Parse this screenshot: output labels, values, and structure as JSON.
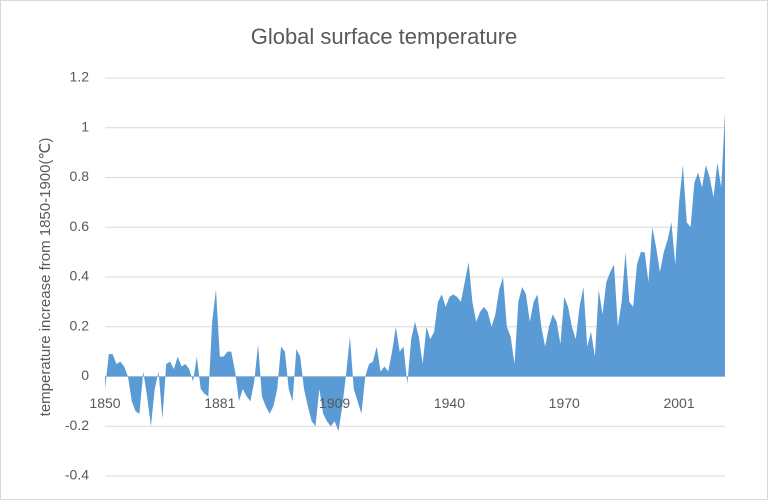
{
  "chart_data": {
    "type": "area",
    "title": "Global surface temperature",
    "y_label": "temperature increase from 1850-1900(℃)",
    "color": "#5b9bd5",
    "grid": true,
    "ylim": [
      -0.4,
      1.2
    ],
    "yticks": [
      -0.4,
      -0.2,
      0,
      0.2,
      0.4,
      0.6,
      0.8,
      1,
      1.2
    ],
    "categories": [
      "1850",
      null,
      null,
      null,
      null,
      null,
      null,
      null,
      null,
      null,
      null,
      null,
      null,
      null,
      null,
      null,
      null,
      null,
      null,
      null,
      null,
      null,
      null,
      null,
      null,
      null,
      null,
      null,
      null,
      null,
      "1881",
      null,
      null,
      null,
      null,
      null,
      null,
      null,
      null,
      null,
      null,
      null,
      null,
      null,
      null,
      null,
      null,
      null,
      null,
      null,
      null,
      null,
      null,
      null,
      null,
      null,
      null,
      null,
      null,
      null,
      "1909",
      null,
      null,
      null,
      null,
      null,
      null,
      null,
      null,
      null,
      null,
      null,
      null,
      null,
      null,
      null,
      null,
      null,
      null,
      null,
      null,
      null,
      null,
      null,
      null,
      null,
      null,
      null,
      null,
      null,
      "1940",
      null,
      null,
      null,
      null,
      null,
      null,
      null,
      null,
      null,
      null,
      null,
      null,
      null,
      null,
      null,
      null,
      null,
      null,
      null,
      null,
      null,
      null,
      null,
      null,
      null,
      null,
      null,
      null,
      null,
      "1970",
      null,
      null,
      null,
      null,
      null,
      null,
      null,
      null,
      null,
      null,
      null,
      null,
      null,
      null,
      null,
      null,
      null,
      null,
      null,
      null,
      null,
      null,
      null,
      null,
      null,
      null,
      null,
      null,
      null,
      "2001",
      null,
      null,
      null,
      null,
      null,
      null,
      null,
      null,
      null,
      null,
      null,
      null
    ],
    "values": [
      -0.05,
      0.09,
      0.09,
      0.05,
      0.06,
      0.04,
      0,
      -0.1,
      -0.14,
      -0.15,
      0.02,
      -0.08,
      -0.2,
      -0.05,
      0.02,
      -0.17,
      0.05,
      0.06,
      0.03,
      0.08,
      0.04,
      0.05,
      0.03,
      -0.02,
      0.08,
      -0.05,
      -0.07,
      -0.08,
      0.22,
      0.35,
      0.08,
      0.08,
      0.1,
      0.1,
      0.02,
      -0.1,
      -0.05,
      -0.08,
      -0.1,
      -0.02,
      0.13,
      -0.08,
      -0.12,
      -0.15,
      -0.12,
      -0.05,
      0.12,
      0.1,
      -0.05,
      -0.1,
      0.11,
      0.08,
      -0.05,
      -0.12,
      -0.18,
      -0.2,
      -0.05,
      -0.15,
      -0.18,
      -0.2,
      -0.18,
      -0.22,
      -0.12,
      0.01,
      0.16,
      -0.05,
      -0.1,
      -0.15,
      0,
      0.05,
      0.06,
      0.12,
      0.02,
      0.04,
      0.02,
      0.1,
      0.2,
      0.1,
      0.12,
      -0.03,
      0.15,
      0.22,
      0.16,
      0.05,
      0.2,
      0.15,
      0.18,
      0.3,
      0.33,
      0.28,
      0.32,
      0.33,
      0.32,
      0.3,
      0.38,
      0.46,
      0.3,
      0.22,
      0.26,
      0.28,
      0.26,
      0.2,
      0.25,
      0.35,
      0.4,
      0.2,
      0.16,
      0.05,
      0.3,
      0.36,
      0.33,
      0.22,
      0.3,
      0.33,
      0.2,
      0.12,
      0.2,
      0.25,
      0.22,
      0.13,
      0.32,
      0.28,
      0.2,
      0.15,
      0.28,
      0.36,
      0.12,
      0.18,
      0.08,
      0.35,
      0.25,
      0.38,
      0.42,
      0.45,
      0.2,
      0.3,
      0.5,
      0.3,
      0.28,
      0.45,
      0.5,
      0.5,
      0.38,
      0.6,
      0.52,
      0.42,
      0.5,
      0.55,
      0.62,
      0.45,
      0.7,
      0.85,
      0.62,
      0.6,
      0.78,
      0.82,
      0.76,
      0.85,
      0.8,
      0.72,
      0.86,
      0.76,
      1.06
    ]
  }
}
